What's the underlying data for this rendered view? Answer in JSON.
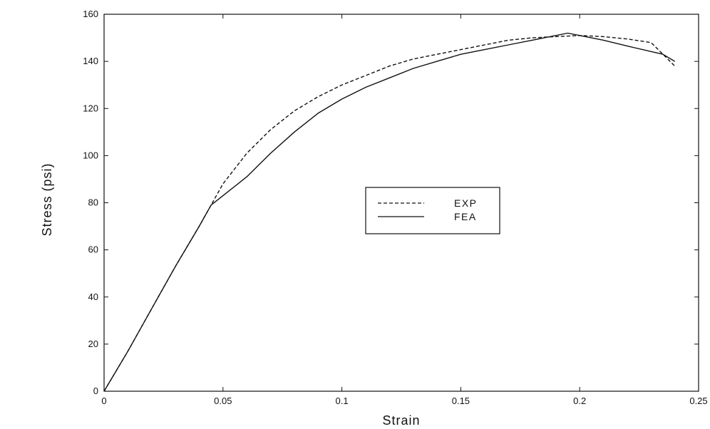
{
  "chart_data": {
    "type": "line",
    "title": "",
    "xlabel": "Strain",
    "ylabel": "Stress (psi)",
    "xlim": [
      0,
      0.25
    ],
    "ylim": [
      0,
      160
    ],
    "xticks": [
      "0",
      "0.05",
      "0.1",
      "0.15",
      "0.2",
      "0.25"
    ],
    "yticks": [
      "0",
      "20",
      "40",
      "60",
      "80",
      "100",
      "120",
      "140",
      "160"
    ],
    "xtick_values": [
      0,
      0.05,
      0.1,
      0.15,
      0.2,
      0.25
    ],
    "ytick_values": [
      0,
      20,
      40,
      60,
      80,
      100,
      120,
      140,
      160
    ],
    "grid": false,
    "legend_position": "center-right",
    "series": [
      {
        "name": "EXP",
        "style": "dashed",
        "x": [
          0,
          0.01,
          0.02,
          0.03,
          0.04,
          0.045,
          0.05,
          0.06,
          0.07,
          0.08,
          0.09,
          0.1,
          0.11,
          0.12,
          0.13,
          0.14,
          0.15,
          0.16,
          0.17,
          0.18,
          0.19,
          0.2,
          0.21,
          0.22,
          0.23,
          0.235,
          0.24
        ],
        "y": [
          0,
          17,
          35,
          53,
          70,
          79,
          88,
          101,
          111,
          119,
          125,
          130,
          134,
          138,
          141,
          143,
          145,
          147,
          149,
          150,
          150.5,
          151,
          150.5,
          149.5,
          148,
          143,
          138
        ]
      },
      {
        "name": "FEA",
        "style": "solid",
        "x": [
          0,
          0.01,
          0.02,
          0.03,
          0.04,
          0.045,
          0.05,
          0.06,
          0.07,
          0.08,
          0.09,
          0.1,
          0.11,
          0.12,
          0.13,
          0.14,
          0.15,
          0.16,
          0.17,
          0.18,
          0.19,
          0.195,
          0.2,
          0.21,
          0.22,
          0.235,
          0.24
        ],
        "y": [
          0,
          17,
          35,
          53,
          70,
          79,
          83,
          91,
          101,
          110,
          118,
          124,
          129,
          133,
          137,
          140,
          143,
          145,
          147,
          149,
          151,
          152,
          151,
          149,
          146.5,
          143,
          140
        ]
      }
    ]
  }
}
